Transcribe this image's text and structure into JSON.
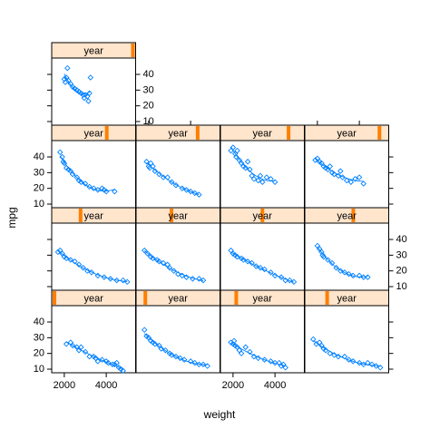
{
  "chart_data": {
    "type": "scatter",
    "xlabel": "weight",
    "ylabel": "mpg",
    "strip_label": "year",
    "color": "#0080ff",
    "strip_color": "#ffe5cc",
    "strip_marker_color": "#ff7f00",
    "xlim": [
      1400,
      5400
    ],
    "ylim": [
      7.7,
      50.4
    ],
    "xticks": [
      2000,
      4000
    ],
    "yticks": [
      10,
      20,
      30,
      40
    ],
    "panels": [
      {
        "x": [
          2100,
          2300,
          2400,
          2600,
          2700,
          2800,
          3000,
          3200,
          3400,
          3500,
          3600,
          3800,
          4000,
          4100,
          4300,
          4400,
          4500,
          4600,
          4700,
          4800
        ],
        "y": [
          26,
          27,
          25,
          24,
          22,
          24,
          21,
          18,
          18,
          17,
          15,
          16,
          15,
          14,
          13,
          13,
          14,
          11,
          10,
          9
        ]
      },
      {
        "x": [
          1800,
          1900,
          2000,
          2100,
          2200,
          2300,
          2500,
          2600,
          2800,
          3000,
          3100,
          3300,
          3500,
          3700,
          4000,
          4200,
          4400,
          4600,
          4800
        ],
        "y": [
          35,
          31,
          30,
          28,
          27,
          26,
          25,
          23,
          22,
          20,
          19,
          18,
          17,
          16,
          15,
          14,
          13,
          13,
          12
        ]
      },
      {
        "x": [
          1900,
          2000,
          2050,
          2100,
          2200,
          2300,
          2400,
          2600,
          2800,
          3000,
          3200,
          3500,
          3800,
          4000,
          4200,
          4300,
          4400,
          4500
        ],
        "y": [
          27,
          26,
          28,
          25,
          24,
          22,
          20,
          24,
          21,
          18,
          17,
          16,
          15,
          14,
          14,
          12,
          13,
          11
        ]
      },
      {
        "x": [
          1800,
          1950,
          2100,
          2200,
          2300,
          2400,
          2600,
          2800,
          3000,
          3300,
          3500,
          3700,
          4000,
          4200,
          4400,
          4600,
          4800,
          5000
        ],
        "y": [
          29,
          26,
          27,
          25,
          23,
          22,
          20,
          19,
          18,
          18,
          16,
          15,
          14,
          13,
          14,
          13,
          12,
          11
        ]
      },
      {
        "x": [
          1700,
          1800,
          1900,
          2000,
          2100,
          2300,
          2500,
          2700,
          2900,
          3100,
          3300,
          3600,
          3900,
          4200,
          4500,
          4800,
          5000
        ],
        "y": [
          32,
          33,
          31,
          29,
          28,
          27,
          26,
          24,
          22,
          20,
          19,
          17,
          16,
          15,
          14,
          14,
          13
        ]
      },
      {
        "x": [
          1800,
          1950,
          2100,
          2200,
          2400,
          2500,
          2700,
          2900,
          3000,
          3200,
          3400,
          3600,
          3800,
          4100,
          4400,
          4600
        ],
        "y": [
          33,
          31,
          29,
          28,
          27,
          26,
          25,
          24,
          22,
          20,
          18,
          17,
          16,
          15,
          15,
          14
        ]
      },
      {
        "x": [
          1900,
          2000,
          2100,
          2200,
          2400,
          2500,
          2700,
          2900,
          3100,
          3300,
          3500,
          3800,
          4000,
          4300,
          4500,
          4700,
          4900
        ],
        "y": [
          33,
          31,
          30,
          29,
          28,
          27,
          26,
          25,
          23,
          22,
          21,
          19,
          17,
          16,
          14,
          14,
          13
        ]
      },
      {
        "x": [
          2000,
          2100,
          2200,
          2250,
          2300,
          2500,
          2700,
          2900,
          3100,
          3300,
          3500,
          3700,
          4000,
          4200,
          4400
        ],
        "y": [
          36,
          34,
          32,
          30,
          29,
          27,
          25,
          22,
          20,
          19,
          18,
          17,
          17,
          16,
          16
        ]
      },
      {
        "x": [
          1800,
          1900,
          1950,
          2000,
          2100,
          2200,
          2300,
          2400,
          2600,
          2700,
          2800,
          3000,
          3200,
          3400,
          3600,
          3800,
          3900,
          4000,
          4400
        ],
        "y": [
          43,
          40,
          37,
          36,
          33,
          32,
          31,
          29,
          27,
          25,
          24,
          23,
          21,
          20,
          19,
          20,
          19,
          18,
          18
        ]
      },
      {
        "x": [
          1900,
          2000,
          2050,
          2100,
          2200,
          2300,
          2500,
          2700,
          2900,
          3100,
          3300,
          3600,
          3800,
          4000,
          4200,
          4400
        ],
        "y": [
          37,
          34,
          33,
          36,
          34,
          31,
          29,
          27,
          27,
          24,
          22,
          20,
          19,
          18,
          17,
          16
        ]
      },
      {
        "x": [
          1900,
          2000,
          2100,
          2150,
          2200,
          2300,
          2400,
          2500,
          2600,
          2700,
          2800,
          2900,
          3000,
          3200,
          3300,
          3400,
          3600,
          3800,
          4000
        ],
        "y": [
          44,
          46,
          42,
          40,
          44,
          38,
          36,
          34,
          33,
          37,
          32,
          28,
          26,
          25,
          28,
          24,
          27,
          26,
          24
        ]
      },
      {
        "x": [
          1900,
          2000,
          2100,
          2200,
          2300,
          2400,
          2500,
          2600,
          2700,
          2800,
          3000,
          3100,
          3200,
          3400,
          3600,
          3800,
          4000,
          4200
        ],
        "y": [
          38,
          39,
          37,
          36,
          34,
          33,
          32,
          34,
          30,
          29,
          28,
          31,
          27,
          25,
          24,
          26,
          27,
          23
        ]
      },
      {
        "x": [
          2000,
          2050,
          2100,
          2150,
          2200,
          2300,
          2400,
          2500,
          2600,
          2700,
          2800,
          2900,
          2950,
          3000,
          3100,
          3150,
          3200,
          3250
        ],
        "y": [
          37,
          35,
          38,
          44,
          36,
          34,
          32,
          31,
          30,
          29,
          28,
          27,
          25,
          27,
          26,
          23,
          28,
          38
        ]
      }
    ]
  }
}
